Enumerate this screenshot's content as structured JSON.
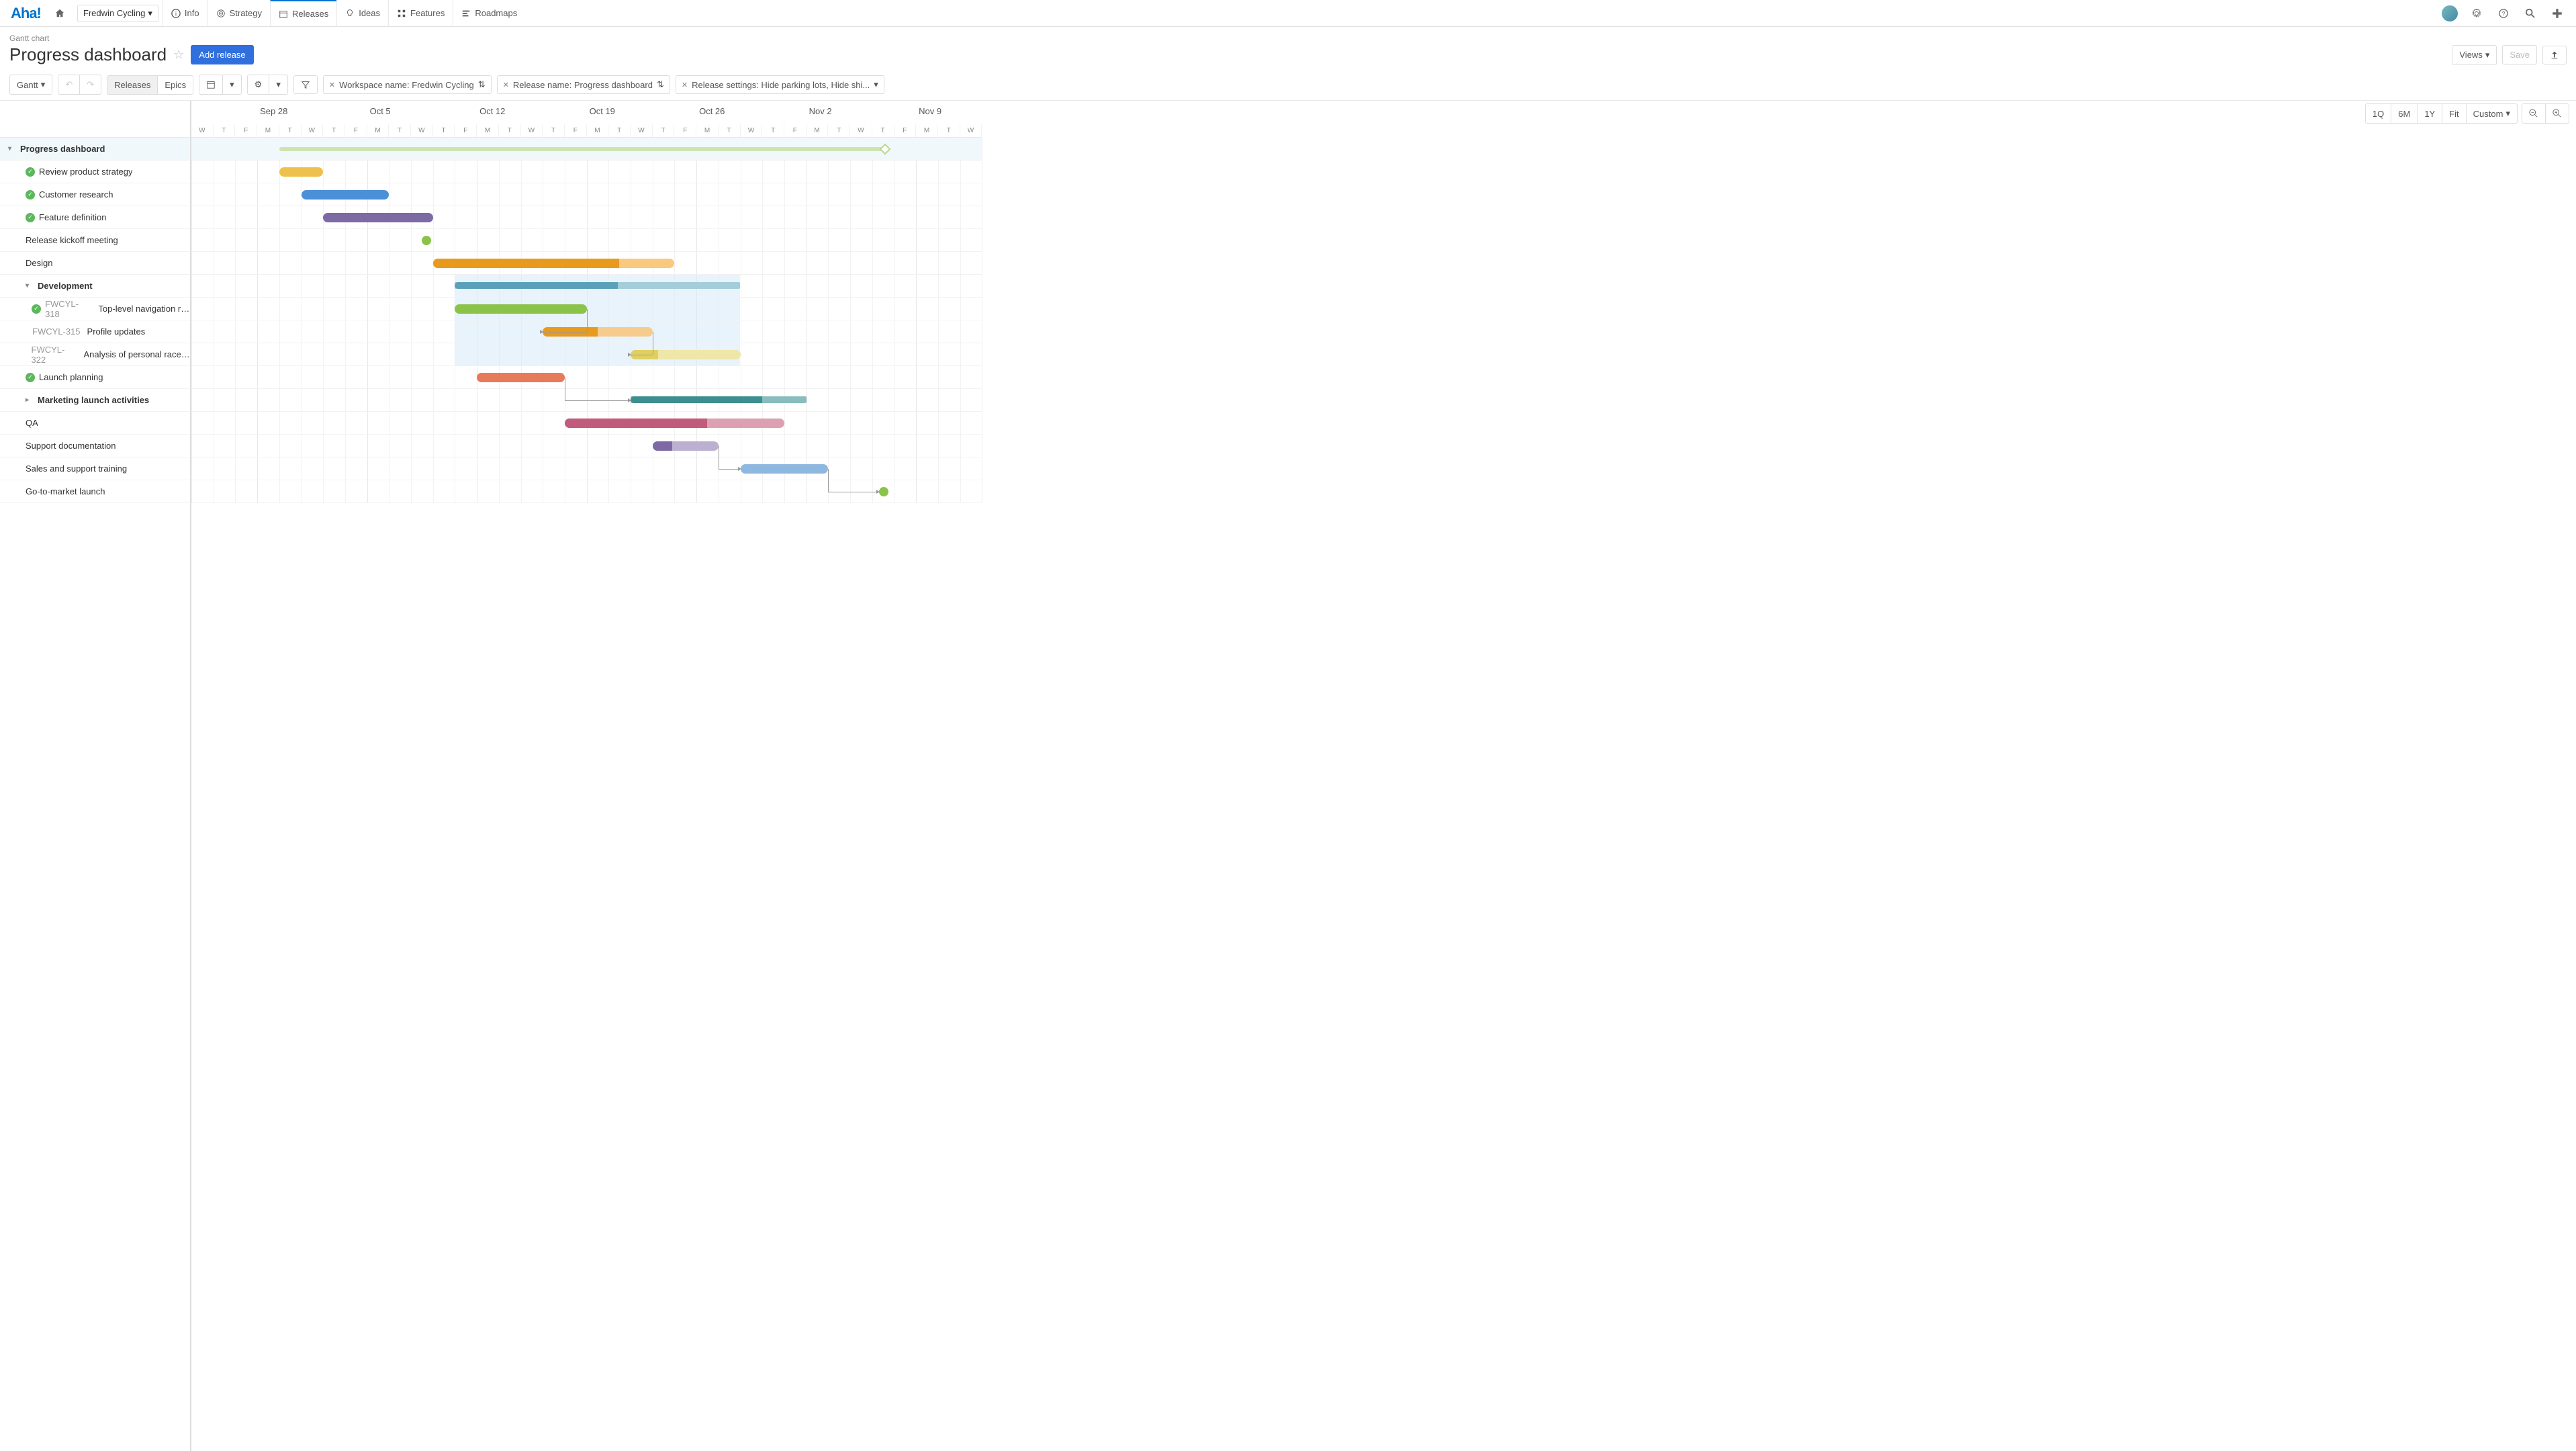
{
  "brand": "Aha!",
  "workspace_selector": "Fredwin Cycling",
  "nav": {
    "info": "Info",
    "strategy": "Strategy",
    "releases": "Releases",
    "ideas": "Ideas",
    "features": "Features",
    "roadmaps": "Roadmaps"
  },
  "breadcrumb": "Gantt chart",
  "page_title": "Progress dashboard",
  "add_release": "Add release",
  "views_label": "Views",
  "save_label": "Save",
  "toolbar": {
    "gantt": "Gantt",
    "releases": "Releases",
    "epics": "Epics"
  },
  "filters": {
    "workspace": "Workspace name: Fredwin Cycling",
    "release": "Release name: Progress dashboard",
    "settings": "Release settings: Hide parking lots, Hide shi..."
  },
  "zoom": {
    "q1": "1Q",
    "m6": "6M",
    "y1": "1Y",
    "fit": "Fit",
    "custom": "Custom"
  },
  "timeline": {
    "day_width": 32.7,
    "total_days": 36,
    "week_starts": [
      {
        "label": "",
        "day": 0
      },
      {
        "label": "Sep 28",
        "day": 3
      },
      {
        "label": "Oct 5",
        "day": 8
      },
      {
        "label": "Oct 12",
        "day": 13
      },
      {
        "label": "Oct 19",
        "day": 18
      },
      {
        "label": "Oct 26",
        "day": 23
      },
      {
        "label": "Nov 2",
        "day": 28
      },
      {
        "label": "Nov 9",
        "day": 33
      }
    ],
    "weekday_pattern": [
      "W",
      "T",
      "F",
      "M",
      "T",
      "W",
      "T",
      "F",
      "M",
      "T",
      "W",
      "T",
      "F",
      "M",
      "T",
      "W",
      "T",
      "F",
      "M",
      "T",
      "W",
      "T",
      "F",
      "M",
      "T",
      "W",
      "T",
      "F",
      "M",
      "T",
      "W",
      "T",
      "F",
      "M",
      "T",
      "W"
    ]
  },
  "tasks": [
    {
      "id": "root",
      "name": "Progress dashboard",
      "type": "group",
      "level": 0,
      "expanded": true,
      "bar": {
        "start": 4,
        "end": 31.5,
        "color": "#cde4b0",
        "style": "thin"
      },
      "milestone": {
        "day": 31.4,
        "color": "#b7d98a",
        "shape": "diamond"
      }
    },
    {
      "id": "t1",
      "name": "Review product strategy",
      "type": "task",
      "level": 1,
      "check": true,
      "bar": {
        "start": 4,
        "end": 6,
        "color": "#edc14b"
      }
    },
    {
      "id": "t2",
      "name": "Customer research",
      "type": "task",
      "level": 1,
      "check": true,
      "bar": {
        "start": 5,
        "end": 9,
        "color": "#4a90d9"
      }
    },
    {
      "id": "t3",
      "name": "Feature definition",
      "type": "task",
      "level": 1,
      "check": true,
      "bar": {
        "start": 6,
        "end": 11,
        "color": "#7d6aa5"
      }
    },
    {
      "id": "t4",
      "name": "Release kickoff meeting",
      "type": "milestone",
      "level": 1,
      "milestone": {
        "day": 10.5,
        "color": "#8bc34a",
        "shape": "circle"
      }
    },
    {
      "id": "t5",
      "name": "Design",
      "type": "task",
      "level": 1,
      "bar": {
        "start": 11,
        "end": 22,
        "color": "#f5a623",
        "progress": 0.77,
        "progress_color": "#e89a1e",
        "light_color": "#f8c97e"
      }
    },
    {
      "id": "dev",
      "name": "Development",
      "type": "group2",
      "level": 1,
      "expanded": true,
      "highlight": {
        "start": 12,
        "end": 25,
        "rows": 4
      },
      "bar": {
        "start": 12,
        "end": 25,
        "color": "#5aa0b8",
        "progress": 0.57,
        "progress_color": "#5aa0b8",
        "light_color": "#a3cdd9",
        "style": "summary"
      }
    },
    {
      "id": "f1",
      "ref": "FWCYL-318",
      "name": "Top-level navigation re...",
      "type": "feature",
      "level": 2,
      "check": true,
      "bar": {
        "start": 12,
        "end": 18,
        "color": "#8bc34a"
      }
    },
    {
      "id": "f2",
      "ref": "FWCYL-315",
      "name": "Profile updates",
      "type": "feature",
      "level": 2,
      "bar": {
        "start": 16,
        "end": 21,
        "color": "#e89a1e",
        "progress": 0.5,
        "light_color": "#f5cc8e"
      }
    },
    {
      "id": "f3",
      "ref": "FWCYL-322",
      "name": "Analysis of personal race g...",
      "type": "feature",
      "level": 2,
      "bar": {
        "start": 20,
        "end": 25,
        "color": "#e0d060",
        "progress": 0.25,
        "light_color": "#efe7a8"
      }
    },
    {
      "id": "t6",
      "name": "Launch planning",
      "type": "task",
      "level": 1,
      "check": true,
      "bar": {
        "start": 13,
        "end": 17,
        "color": "#e77a5a"
      }
    },
    {
      "id": "t7",
      "name": "Marketing launch activities",
      "type": "group2",
      "level": 1,
      "expanded": false,
      "bar": {
        "start": 20,
        "end": 28,
        "color": "#3d8f8f",
        "progress": 0.75,
        "light_color": "#89bdbd",
        "style": "summary"
      }
    },
    {
      "id": "t8",
      "name": "QA",
      "type": "task",
      "level": 1,
      "bar": {
        "start": 17,
        "end": 27,
        "color": "#c15b7c",
        "progress": 0.65,
        "light_color": "#dca0b3"
      }
    },
    {
      "id": "t9",
      "name": "Support documentation",
      "type": "task",
      "level": 1,
      "bar": {
        "start": 21,
        "end": 24,
        "color": "#7d6aa5",
        "progress": 0.3,
        "light_color": "#bcb0d0"
      }
    },
    {
      "id": "t10",
      "name": "Sales and support training",
      "type": "task",
      "level": 1,
      "bar": {
        "start": 25,
        "end": 29,
        "color": "#8fb8e0"
      }
    },
    {
      "id": "t11",
      "name": "Go-to-market launch",
      "type": "milestone",
      "level": 1,
      "milestone": {
        "day": 31.3,
        "color": "#8bc34a",
        "shape": "circle"
      }
    }
  ],
  "dependencies": [
    {
      "from": "f1",
      "to": "f2"
    },
    {
      "from": "f2",
      "to": "f3"
    },
    {
      "from": "t6",
      "to": "t7"
    },
    {
      "from": "t9",
      "to": "t10"
    },
    {
      "from": "t10",
      "to": "t11"
    }
  ]
}
